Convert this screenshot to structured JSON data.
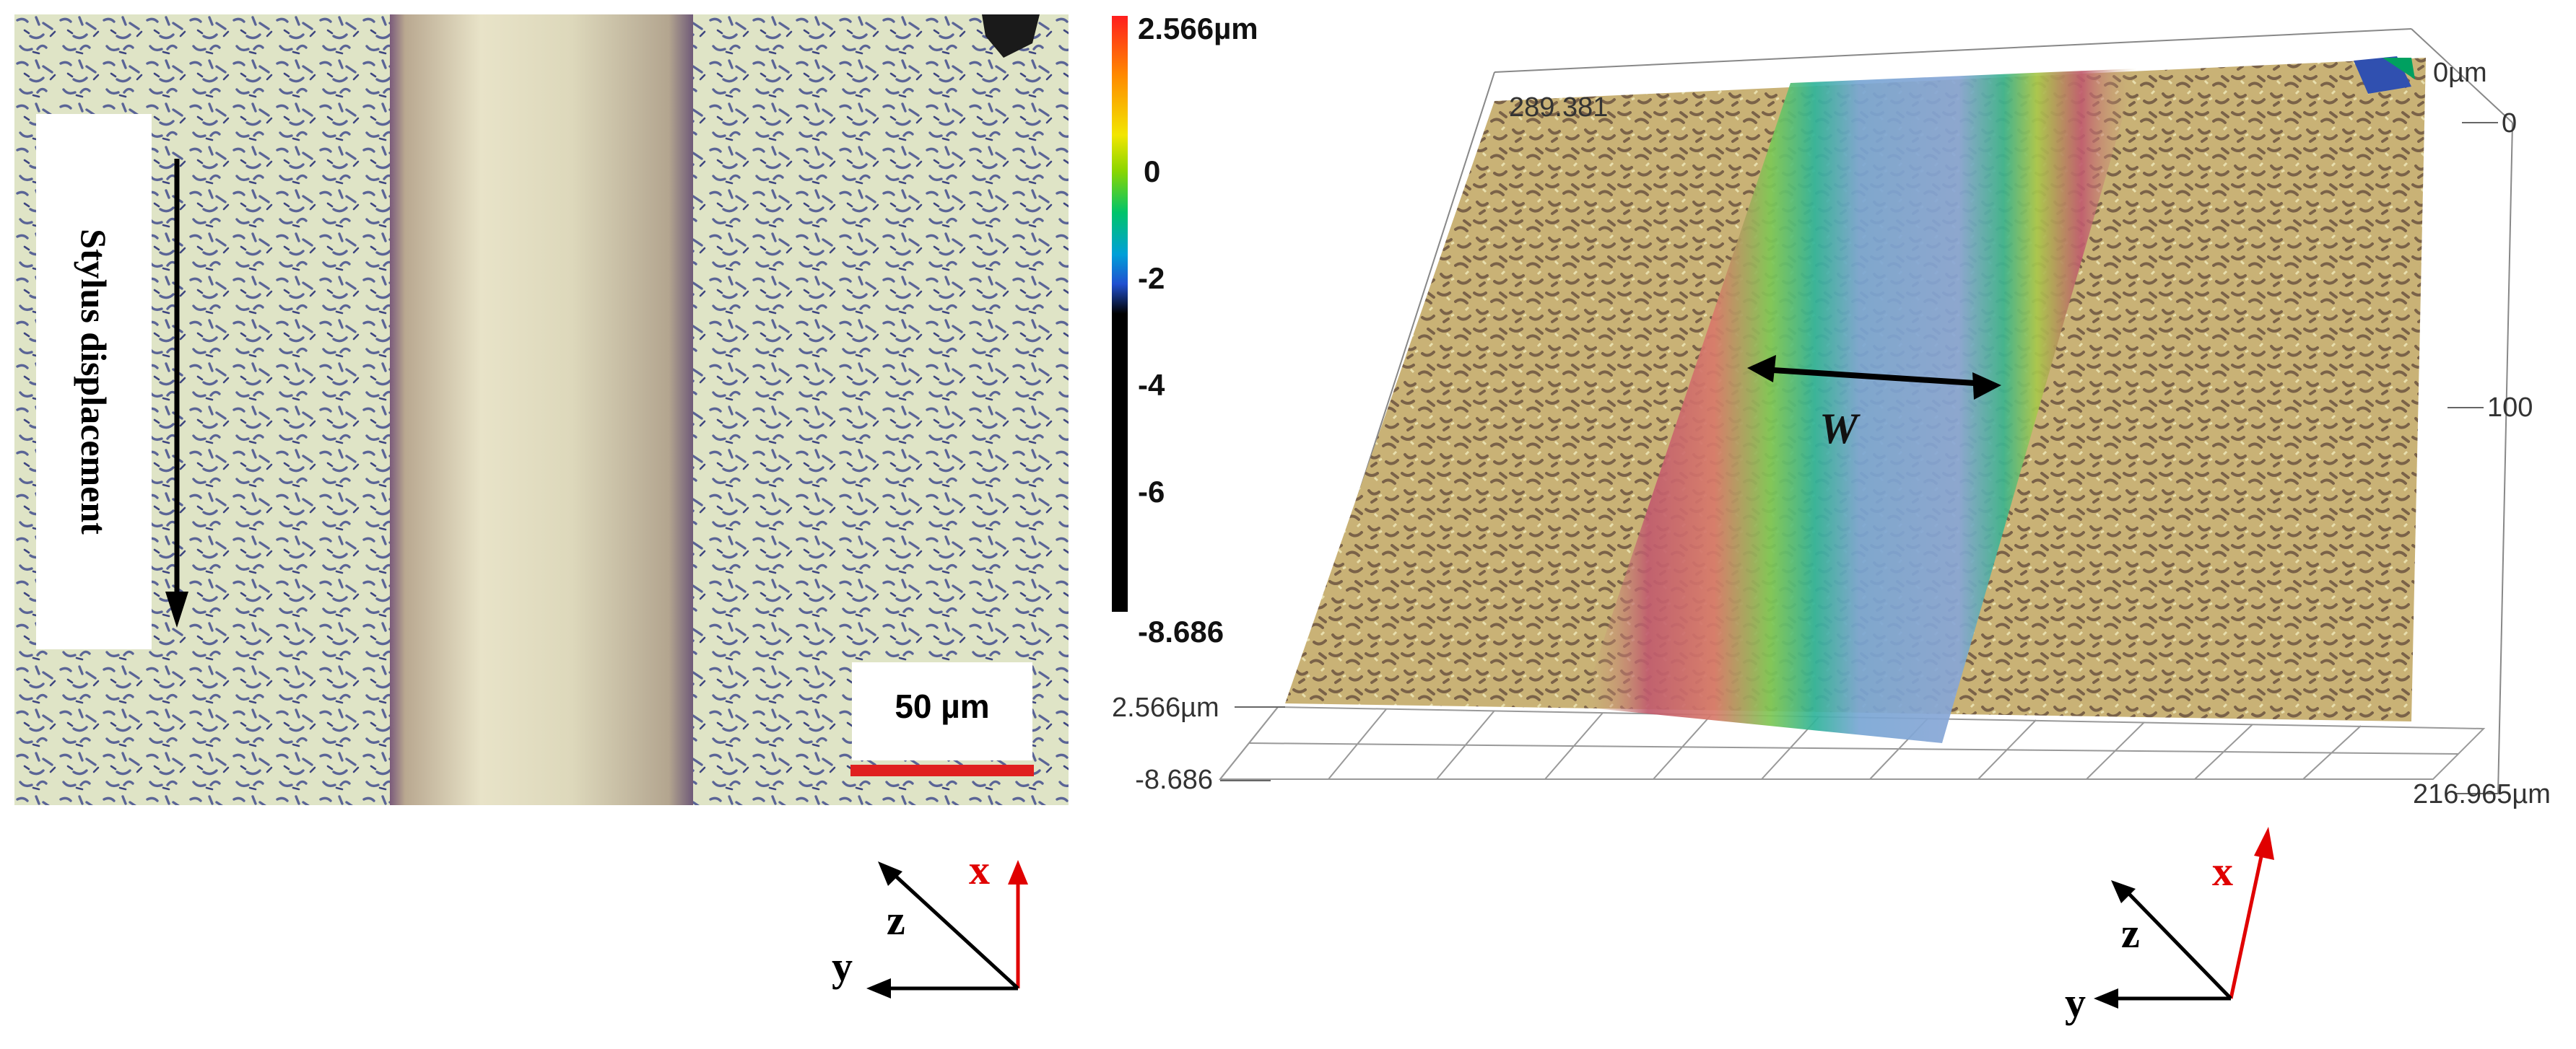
{
  "micrograph": {
    "direction_label": "Stylus displacement",
    "scale_bar_label": "50 µm",
    "scale_bar_color": "#e02020"
  },
  "profilometry": {
    "colorbar_ticks": [
      "2.566µm",
      "0",
      "-2",
      "-4",
      "-6",
      "-8.686"
    ],
    "axis_labels": {
      "y_far": "289.381",
      "x_top": "0µm",
      "x_zero": "0",
      "x_mid": "100",
      "x_end": "216.965µm",
      "z_top": "2.566µm",
      "z_bottom": "-8.686"
    },
    "width_label": "W"
  },
  "triad_left": {
    "x": "x",
    "y": "y",
    "z": "z"
  },
  "triad_right": {
    "x": "x",
    "y": "y",
    "z": "z"
  },
  "colors": {
    "x_axis": "#e00000",
    "yz_axis": "#000000"
  }
}
